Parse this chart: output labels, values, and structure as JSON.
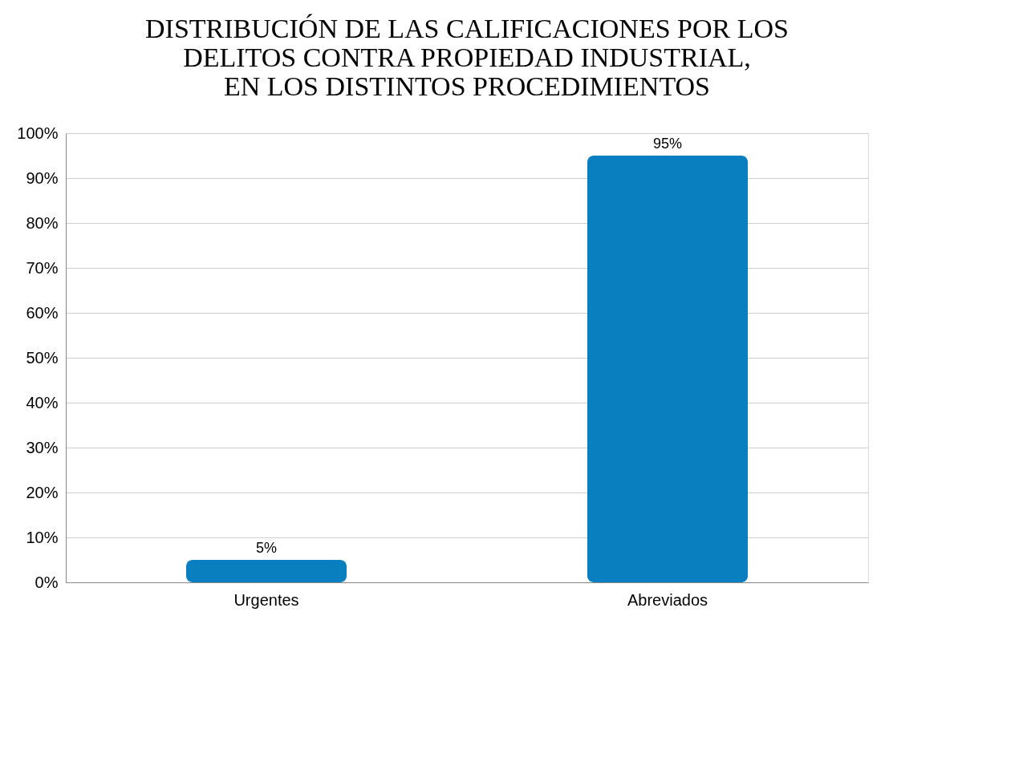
{
  "chart_data": {
    "type": "bar",
    "title": "DISTRIBUCIÓN DE LAS CALIFICACIONES POR LOS\nDELITOS CONTRA PROPIEDAD INDUSTRIAL,\nEN  LOS DISTINTOS PROCEDIMIENTOS",
    "categories": [
      "Urgentes",
      "Abreviados"
    ],
    "values": [
      5,
      95
    ],
    "value_labels": [
      "5%",
      "95%"
    ],
    "color": "#0a7fc0",
    "ylim": [
      0,
      100
    ],
    "yticks": [
      {
        "value": 0,
        "label": "0%"
      },
      {
        "value": 10,
        "label": "10%"
      },
      {
        "value": 20,
        "label": "20%"
      },
      {
        "value": 30,
        "label": "30%"
      },
      {
        "value": 40,
        "label": "40%"
      },
      {
        "value": 50,
        "label": "50%"
      },
      {
        "value": 60,
        "label": "60%"
      },
      {
        "value": 70,
        "label": "70%"
      },
      {
        "value": 80,
        "label": "80%"
      },
      {
        "value": 90,
        "label": "90%"
      },
      {
        "value": 100,
        "label": "100%"
      }
    ],
    "grid": "y"
  }
}
